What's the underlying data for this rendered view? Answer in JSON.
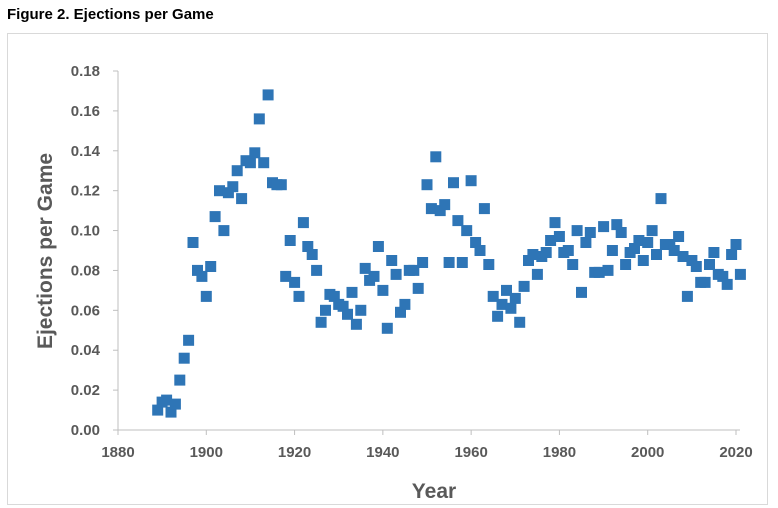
{
  "figure_caption": "Figure 2. Ejections per Game",
  "colors": {
    "marker": "#2e75b6",
    "axis_text": "#595959",
    "axis_line": "#bfbfbf"
  },
  "chart_data": {
    "type": "scatter",
    "title": "",
    "xlabel": "Year",
    "ylabel": "Ejections per Game",
    "xlim": [
      1880,
      2020
    ],
    "ylim": [
      0,
      0.18
    ],
    "x_ticks": [
      1880,
      1900,
      1920,
      1940,
      1960,
      1980,
      2000,
      2020
    ],
    "y_ticks": [
      0.0,
      0.02,
      0.04,
      0.06,
      0.08,
      0.1,
      0.12,
      0.14,
      0.16,
      0.18
    ],
    "x_tick_labels": [
      "1880",
      "1900",
      "1920",
      "1940",
      "1960",
      "1980",
      "2000",
      "2020"
    ],
    "y_tick_labels": [
      "0.00",
      "0.02",
      "0.04",
      "0.06",
      "0.08",
      "0.10",
      "0.12",
      "0.14",
      "0.16",
      "0.18"
    ],
    "grid": false,
    "legend": "none",
    "series": [
      {
        "x": [
          1889,
          1890,
          1891,
          1892,
          1893,
          1894,
          1895,
          1896,
          1897,
          1898,
          1899,
          1900,
          1901,
          1902,
          1903,
          1904,
          1905,
          1906,
          1907,
          1908,
          1909,
          1910,
          1911,
          1912,
          1913,
          1914,
          1915,
          1916,
          1917,
          1918,
          1919,
          1920,
          1921,
          1922,
          1923,
          1924,
          1925,
          1926,
          1927,
          1928,
          1929,
          1930,
          1931,
          1932,
          1933,
          1934,
          1935,
          1936,
          1937,
          1938,
          1939,
          1940,
          1941,
          1942,
          1943,
          1944,
          1945,
          1946,
          1947,
          1948,
          1949,
          1950,
          1951,
          1952,
          1953,
          1954,
          1955,
          1956,
          1957,
          1958,
          1959,
          1960,
          1961,
          1962,
          1963,
          1964,
          1965,
          1966,
          1967,
          1968,
          1969,
          1970,
          1971,
          1972,
          1973,
          1974,
          1975,
          1976,
          1977,
          1978,
          1979,
          1980,
          1981,
          1982,
          1983,
          1984,
          1985,
          1986,
          1987,
          1988,
          1989,
          1990,
          1991,
          1992,
          1993,
          1994,
          1995,
          1996,
          1997,
          1998,
          1999,
          2000,
          2001,
          2002,
          2003,
          2004,
          2005,
          2006,
          2007,
          2008,
          2009,
          2010,
          2011,
          2012,
          2013,
          2014,
          2015,
          2016,
          2017,
          2018,
          2019,
          2020,
          2021
        ],
        "y": [
          0.01,
          0.014,
          0.015,
          0.009,
          0.013,
          0.025,
          0.036,
          0.045,
          0.094,
          0.08,
          0.077,
          0.067,
          0.082,
          0.107,
          0.12,
          0.1,
          0.119,
          0.122,
          0.13,
          0.116,
          0.135,
          0.134,
          0.139,
          0.156,
          0.134,
          0.168,
          0.124,
          0.123,
          0.123,
          0.077,
          0.095,
          0.074,
          0.067,
          0.104,
          0.092,
          0.088,
          0.08,
          0.054,
          0.06,
          0.068,
          0.067,
          0.063,
          0.062,
          0.058,
          0.069,
          0.053,
          0.06,
          0.081,
          0.075,
          0.077,
          0.092,
          0.07,
          0.051,
          0.085,
          0.078,
          0.059,
          0.063,
          0.08,
          0.08,
          0.071,
          0.084,
          0.123,
          0.111,
          0.137,
          0.11,
          0.113,
          0.084,
          0.124,
          0.105,
          0.084,
          0.1,
          0.125,
          0.094,
          0.09,
          0.111,
          0.083,
          0.067,
          0.057,
          0.063,
          0.07,
          0.061,
          0.066,
          0.054,
          0.072,
          0.085,
          0.088,
          0.078,
          0.087,
          0.089,
          0.095,
          0.104,
          0.097,
          0.089,
          0.09,
          0.083,
          0.1,
          0.069,
          0.094,
          0.099,
          0.079,
          0.079,
          0.102,
          0.08,
          0.09,
          0.103,
          0.099,
          0.083,
          0.089,
          0.091,
          0.095,
          0.085,
          0.094,
          0.1,
          0.088,
          0.116,
          0.093,
          0.093,
          0.09,
          0.097,
          0.087,
          0.067,
          0.085,
          0.082,
          0.074,
          0.074,
          0.083,
          0.089,
          0.078,
          0.077,
          0.073,
          0.088,
          0.093,
          0.078
        ]
      }
    ]
  }
}
